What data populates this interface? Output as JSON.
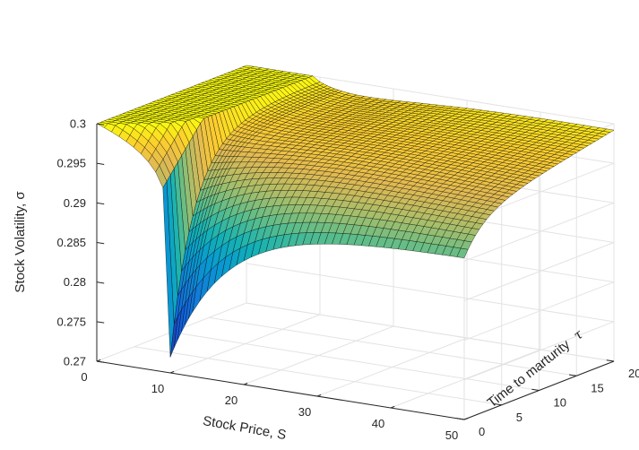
{
  "chart_data": {
    "type": "surface3d",
    "title": "",
    "xlabel": "Stock Price, S",
    "ylabel": "Time to marturity",
    "ylabel_symbol": "τ",
    "zlabel": "Stock Volatility, σ",
    "xlim": [
      0,
      50
    ],
    "ylim": [
      0,
      20
    ],
    "zlim": [
      0.27,
      0.3
    ],
    "xticks": [
      "0",
      "10",
      "20",
      "30",
      "40",
      "50"
    ],
    "yticks": [
      "0",
      "5",
      "10",
      "15",
      "20"
    ],
    "zticks": [
      "0.27",
      "0.275",
      "0.28",
      "0.285",
      "0.29",
      "0.295",
      "0.3"
    ],
    "grid": true,
    "colormap": "parula",
    "edge_color": "#000000",
    "strike": 10,
    "surface_min": 0.272,
    "surface_max": 0.3,
    "surface_description_points": [
      {
        "S": 0,
        "tau": 0,
        "sigma": 0.3
      },
      {
        "S": 10,
        "tau": 0,
        "sigma": 0.272
      },
      {
        "S": 15,
        "tau": 0,
        "sigma": 0.282
      },
      {
        "S": 50,
        "tau": 0,
        "sigma": 0.2905
      },
      {
        "S": 10,
        "tau": 20,
        "sigma": 0.3
      },
      {
        "S": 50,
        "tau": 20,
        "sigma": 0.2985
      }
    ]
  }
}
